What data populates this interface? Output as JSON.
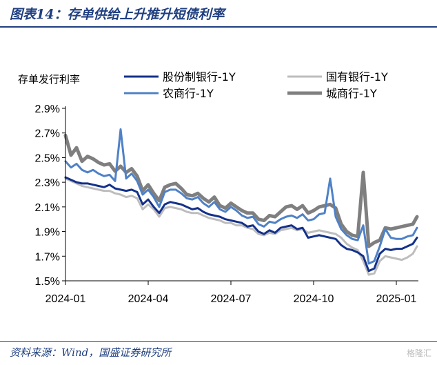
{
  "figure": {
    "title": "图表14：存单供给上升推升短债利率",
    "source": "资料来源：Wind，国盛证券研究所",
    "watermark": "格隆汇"
  },
  "chart_data": {
    "type": "line",
    "title": "",
    "ylabel": "存单发行利率",
    "xlabel": "",
    "ylim": [
      1.5,
      2.9
    ],
    "y_ticks": [
      "2.9%",
      "2.7%",
      "2.5%",
      "2.3%",
      "2.1%",
      "1.9%",
      "1.7%",
      "1.5%"
    ],
    "y_tick_values": [
      2.9,
      2.7,
      2.5,
      2.3,
      2.1,
      1.9,
      1.7,
      1.5
    ],
    "x_ticks": [
      "2024-01",
      "2024-04",
      "2024-07",
      "2024-10",
      "2025-01"
    ],
    "x_tick_values": [
      0,
      3,
      6,
      9,
      12
    ],
    "x_range": [
      0,
      12.8
    ],
    "legend_position": "top",
    "grid": false,
    "x": [
      0,
      0.2,
      0.4,
      0.6,
      0.8,
      1.0,
      1.2,
      1.4,
      1.6,
      1.8,
      2.0,
      2.2,
      2.4,
      2.6,
      2.8,
      3.0,
      3.2,
      3.4,
      3.6,
      3.8,
      4.0,
      4.2,
      4.4,
      4.6,
      4.8,
      5.0,
      5.2,
      5.4,
      5.6,
      5.8,
      6.0,
      6.2,
      6.4,
      6.6,
      6.8,
      7.0,
      7.2,
      7.4,
      7.6,
      7.8,
      8.0,
      8.2,
      8.4,
      8.6,
      8.8,
      9.0,
      9.2,
      9.4,
      9.6,
      9.8,
      10.0,
      10.2,
      10.4,
      10.6,
      10.8,
      11.0,
      11.2,
      11.4,
      11.6,
      11.8,
      12.0,
      12.2,
      12.4,
      12.6,
      12.75
    ],
    "series": [
      {
        "name": "股份制银行-1Y",
        "color": "#14318a",
        "width": 3,
        "values": [
          2.34,
          2.32,
          2.3,
          2.29,
          2.29,
          2.28,
          2.27,
          2.26,
          2.28,
          2.25,
          2.24,
          2.23,
          2.24,
          2.22,
          2.12,
          2.16,
          2.1,
          2.05,
          2.12,
          2.14,
          2.13,
          2.12,
          2.1,
          2.08,
          2.09,
          2.06,
          2.04,
          2.03,
          2.02,
          2.0,
          1.99,
          1.98,
          1.97,
          1.94,
          1.95,
          1.9,
          1.88,
          1.91,
          1.89,
          1.93,
          1.94,
          1.95,
          1.92,
          1.93,
          1.85,
          1.86,
          1.87,
          1.86,
          1.85,
          1.84,
          1.79,
          1.76,
          1.75,
          1.73,
          1.7,
          1.58,
          1.6,
          1.72,
          1.76,
          1.75,
          1.76,
          1.76,
          1.78,
          1.8,
          1.85
        ]
      },
      {
        "name": "国有银行-1Y",
        "color": "#bdbdbd",
        "width": 3,
        "values": [
          2.33,
          2.31,
          2.29,
          2.27,
          2.26,
          2.25,
          2.24,
          2.23,
          2.23,
          2.21,
          2.2,
          2.18,
          2.19,
          2.17,
          2.08,
          2.12,
          2.08,
          2.02,
          2.09,
          2.1,
          2.09,
          2.08,
          2.06,
          2.05,
          2.05,
          2.03,
          2.01,
          2.0,
          1.99,
          1.97,
          1.97,
          1.95,
          1.95,
          1.93,
          1.92,
          1.88,
          1.87,
          1.89,
          1.88,
          1.91,
          1.92,
          1.93,
          1.91,
          1.92,
          1.89,
          1.9,
          1.91,
          1.9,
          1.89,
          1.88,
          1.85,
          1.8,
          1.77,
          1.75,
          1.66,
          1.55,
          1.56,
          1.66,
          1.7,
          1.69,
          1.68,
          1.67,
          1.69,
          1.72,
          1.78
        ]
      },
      {
        "name": "农商行-1Y",
        "color": "#4f81c7",
        "width": 3,
        "values": [
          2.47,
          2.42,
          2.45,
          2.4,
          2.38,
          2.4,
          2.37,
          2.35,
          2.36,
          2.31,
          2.73,
          2.33,
          2.37,
          2.31,
          2.2,
          2.24,
          2.18,
          2.1,
          2.22,
          2.24,
          2.24,
          2.21,
          2.17,
          2.16,
          2.18,
          2.13,
          2.1,
          2.14,
          2.08,
          2.06,
          2.1,
          2.07,
          2.03,
          2.01,
          2.02,
          1.96,
          1.94,
          1.98,
          1.97,
          2.0,
          2.02,
          2.03,
          2.01,
          2.04,
          1.99,
          2.0,
          2.04,
          2.05,
          2.33,
          2.02,
          1.92,
          1.87,
          1.84,
          1.83,
          1.95,
          1.64,
          1.66,
          1.78,
          1.92,
          1.85,
          1.84,
          1.84,
          1.86,
          1.87,
          1.93
        ]
      },
      {
        "name": "城商行-1Y",
        "color": "#7f7f7f",
        "width": 5,
        "values": [
          2.68,
          2.52,
          2.58,
          2.47,
          2.51,
          2.49,
          2.46,
          2.44,
          2.45,
          2.39,
          2.43,
          2.38,
          2.41,
          2.35,
          2.23,
          2.28,
          2.21,
          2.15,
          2.26,
          2.28,
          2.29,
          2.25,
          2.2,
          2.19,
          2.21,
          2.17,
          2.14,
          2.18,
          2.11,
          2.09,
          2.13,
          2.1,
          2.07,
          2.05,
          2.05,
          2.0,
          1.99,
          2.03,
          2.02,
          2.06,
          2.1,
          2.11,
          2.08,
          2.11,
          2.05,
          2.07,
          2.1,
          2.11,
          2.12,
          2.09,
          1.96,
          1.9,
          1.87,
          1.86,
          2.38,
          1.78,
          1.81,
          1.83,
          1.93,
          1.92,
          1.93,
          1.94,
          1.95,
          1.96,
          2.02
        ]
      }
    ]
  }
}
